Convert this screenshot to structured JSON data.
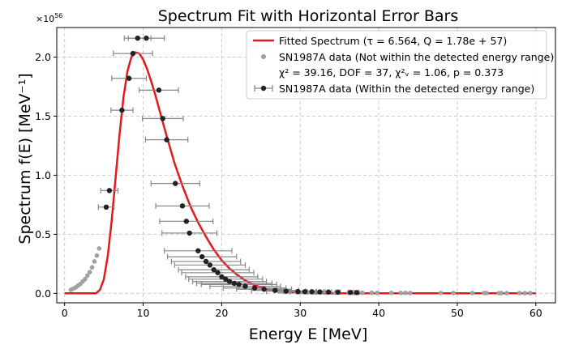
{
  "chart_data": {
    "type": "scatter",
    "title": "Spectrum Fit with Horizontal Error Bars",
    "xlabel": "Energy E [MeV]",
    "ylabel": "Spectrum f(E) [MeV⁻¹]",
    "y_multiplier_label": "×10",
    "y_multiplier_exponent": "56",
    "xlim": [
      -1,
      62.5
    ],
    "ylim": [
      -0.08,
      2.25
    ],
    "x_ticks": [
      0,
      10,
      20,
      30,
      40,
      50,
      60
    ],
    "y_ticks": [
      0.0,
      0.5,
      1.0,
      1.5,
      2.0
    ],
    "x_tick_labels": [
      "0",
      "10",
      "20",
      "30",
      "40",
      "50",
      "60"
    ],
    "y_tick_labels": [
      "0.0",
      "0.5",
      "1.0",
      "1.5",
      "2.0"
    ],
    "grid": true,
    "legend_position": "top-right",
    "legend": {
      "fit": "Fitted Spectrum (τ = 6.564,  Q = 1.78e + 57)",
      "outside": "SN1987A data (Not within the detected energy range)",
      "stats": "χ² = 39.16, DOF = 37, χ²ᵥ = 1.06, p = 0.373",
      "inside": "SN1987A data (Within the detected energy range)"
    },
    "colors": {
      "fit": "#e31a1c",
      "outside": "#a0a0a0",
      "inside": "#222222",
      "errorbar": "#888888"
    },
    "fit_curve": {
      "name": "Fitted Spectrum",
      "x": [
        0,
        3,
        4,
        4.5,
        5,
        5.5,
        6,
        6.5,
        7,
        7.5,
        8,
        8.5,
        9,
        9.5,
        10,
        10.5,
        11,
        11.5,
        12,
        12.5,
        13,
        14,
        15,
        16,
        17,
        18,
        19,
        20,
        21,
        22,
        23,
        24,
        25,
        26,
        27,
        28,
        30,
        33,
        36,
        40,
        45,
        50,
        55,
        60
      ],
      "y": [
        0,
        0,
        0,
        0.03,
        0.12,
        0.32,
        0.62,
        0.98,
        1.35,
        1.66,
        1.88,
        2.0,
        2.04,
        2.03,
        1.98,
        1.9,
        1.8,
        1.69,
        1.57,
        1.45,
        1.33,
        1.1,
        0.91,
        0.74,
        0.6,
        0.48,
        0.37,
        0.28,
        0.21,
        0.155,
        0.11,
        0.075,
        0.05,
        0.032,
        0.02,
        0.012,
        0.005,
        0.001,
        0,
        0,
        0,
        0,
        0,
        0
      ]
    },
    "series_outside": {
      "name": "SN1987A data (Not within the detected energy range)",
      "x": [
        0.8,
        1.1,
        1.4,
        1.7,
        2.0,
        2.3,
        2.6,
        2.9,
        3.2,
        3.5,
        3.8,
        4.1,
        4.4,
        27.3,
        27.8,
        28.6,
        29.5,
        30.3,
        31.0,
        31.9,
        33.0,
        34.5,
        36.2,
        37.9,
        39.1,
        39.8,
        41.6,
        42.8,
        43.4,
        44.0,
        47.9,
        49.5,
        51.9,
        53.4,
        53.7,
        55.3,
        55.6,
        56.3,
        57.9,
        58.6,
        59.3
      ],
      "y": [
        0.03,
        0.04,
        0.05,
        0.065,
        0.08,
        0.1,
        0.12,
        0.15,
        0.18,
        0.22,
        0.27,
        0.32,
        0.38,
        0.015,
        0.013,
        0.012,
        0.011,
        0.01,
        0.009,
        0.008,
        0.008,
        0.007,
        0.006,
        0.005,
        0.005,
        0.004,
        0.004,
        0.004,
        0.004,
        0.003,
        0.003,
        0.003,
        0.003,
        0.003,
        0.003,
        0.002,
        0.002,
        0.002,
        0.002,
        0.002,
        0.002
      ]
    },
    "series_inside": {
      "name": "SN1987A data (Within the detected energy range)",
      "x": [
        9.3,
        10.4,
        8.7,
        8.2,
        12.0,
        12.5,
        13.0,
        7.3,
        14.1,
        5.7,
        5.3,
        15.0,
        15.5,
        15.9,
        17.0,
        17.5,
        18.0,
        18.5,
        19.0,
        19.5,
        20.0,
        20.5,
        21.0,
        21.6,
        22.2,
        23.0,
        24.2,
        25.4,
        26.8,
        28.2,
        29.7,
        30.6,
        31.5,
        32.5,
        33.6,
        34.8,
        36.4,
        37.2
      ],
      "y": [
        2.16,
        2.16,
        2.03,
        1.82,
        1.72,
        1.48,
        1.3,
        1.55,
        0.93,
        0.87,
        0.73,
        0.74,
        0.61,
        0.51,
        0.36,
        0.31,
        0.27,
        0.24,
        0.2,
        0.175,
        0.14,
        0.12,
        0.1,
        0.085,
        0.075,
        0.06,
        0.045,
        0.035,
        0.025,
        0.018,
        0.015,
        0.014,
        0.013,
        0.012,
        0.011,
        0.01,
        0.008,
        0.007
      ],
      "xerr": [
        1.7,
        2.3,
        2.5,
        2.2,
        2.5,
        2.6,
        2.7,
        1.4,
        3.1,
        1.1,
        1.0,
        3.4,
        3.4,
        3.5,
        4.3,
        4.4,
        4.4,
        4.5,
        4.5,
        4.6,
        4.6,
        4.7,
        4.7,
        4.8,
        4.8,
        4.5,
        4.0,
        3.5,
        3.0,
        2.5,
        1.0,
        0.8,
        0.6,
        0.5,
        0.4,
        0.3,
        0.3,
        0.3
      ]
    }
  }
}
